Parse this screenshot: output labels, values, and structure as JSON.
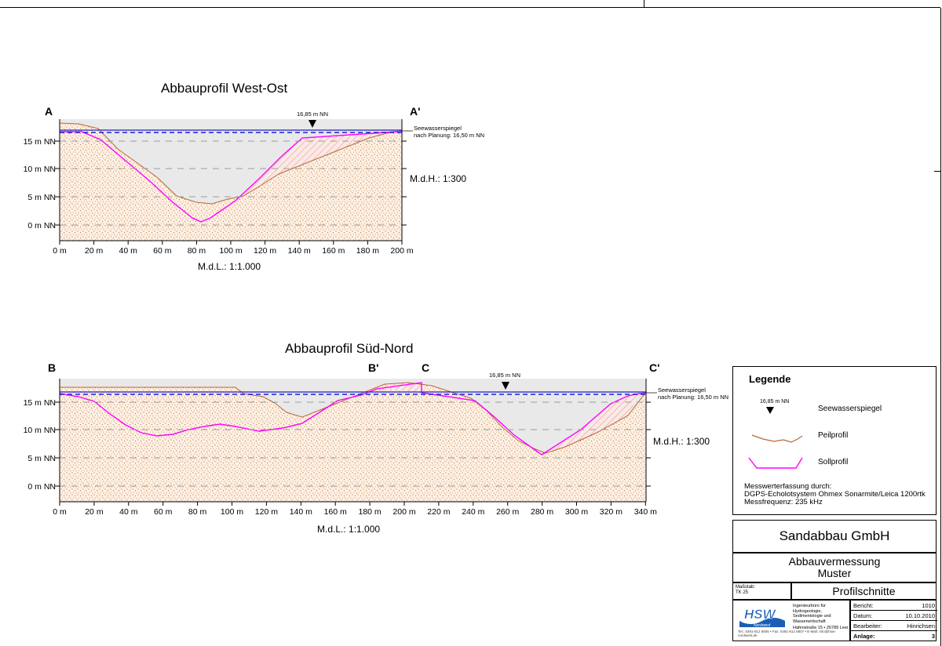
{
  "profile_west_ost": {
    "title": "Abbauprofil West-Ost",
    "start_label": "A",
    "end_label": "A'",
    "water_level_label": "16,85 m NN",
    "water_level": 16.85,
    "planned_label_line1": "Seewasserspiegel",
    "planned_label_line2": "nach Planung: 16,50 m NN",
    "planned_level": 16.5,
    "vscale": "M.d.H.: 1:300",
    "hscale": "M.d.L.: 1:1.000",
    "y_ticks": [
      "0 m NN",
      "5 m NN",
      "10 m NN",
      "15 m NN"
    ],
    "x_ticks": [
      "0 m",
      "20 m",
      "40 m",
      "60 m",
      "80 m",
      "100 m",
      "120 m",
      "140 m",
      "160 m",
      "180 m",
      "200 m"
    ]
  },
  "profile_sued_nord": {
    "title": "Abbauprofil Süd-Nord",
    "start_label": "B",
    "mid_label_1": "B'",
    "mid_label_2": "C",
    "end_label": "C'",
    "water_level_label": "16,85 m NN",
    "water_level": 16.85,
    "planned_label_line1": "Seewasserspiegel",
    "planned_label_line2": "nach Planung: 16,50 m NN",
    "planned_level": 16.5,
    "vscale": "M.d.H.: 1:300",
    "hscale": "M.d.L.: 1:1.000",
    "y_ticks": [
      "0 m NN",
      "5 m NN",
      "10 m NN",
      "15 m NN"
    ],
    "x_ticks": [
      "0 m",
      "20 m",
      "40 m",
      "60 m",
      "80 m",
      "100 m",
      "120 m",
      "140 m",
      "160 m",
      "180 m",
      "200 m",
      "220 m",
      "240 m",
      "260 m",
      "280 m",
      "300 m",
      "320 m",
      "340 m"
    ]
  },
  "legend": {
    "title": "Legende",
    "water_level_sample": "16,85 m NN",
    "water_level": "Seewasserspiegel",
    "peilprofil": "Peilprofil",
    "sollprofil": "Sollprofil",
    "note_line1": "Messwerterfassung durch:",
    "note_line2": "DGPS-Echolotsystem Ohmex Sonarmite/Leica 1200rtk",
    "note_line3": "Messfrequenz: 235 kHz"
  },
  "title_block": {
    "company": "Sandabbau GmbH",
    "project_line1": "Abbauvermessung",
    "project_line2": "Muster",
    "scale_label": "Maßstab:",
    "scale_value": "TK 25",
    "sheet_title": "Profilschnitte",
    "logo_text": "HSW",
    "logo_sub": "Nordwest",
    "office_line1": "Ingenieurbüro für",
    "office_line2": "Hydrogeologie,",
    "office_line3": "Sedimentologie und",
    "office_line4": "Wasserwirtschaft",
    "office_address": "Hafenstraße 15 • 26789 Leer",
    "office_contact": "Tel.: 0491-912 6806 • Fax: 0491-912 6807 • E-Mail: info@hsw-nordwest.de",
    "meta": {
      "bericht_label": "Bericht:",
      "bericht_value": "1010",
      "datum_label": "Datum:",
      "datum_value": "10.10.2010",
      "bearbeiter_label": "Bearbeiter:",
      "bearbeiter_value": "Hinrichsen",
      "anlage_label": "Anlage:",
      "anlage_value": "3"
    }
  },
  "colors": {
    "sediment": "#d9905a",
    "peilprofil": "#b8683a",
    "sollprofil": "#ff00ff",
    "water": "#e9e9e9",
    "level_line": "#1f1fd0"
  }
}
